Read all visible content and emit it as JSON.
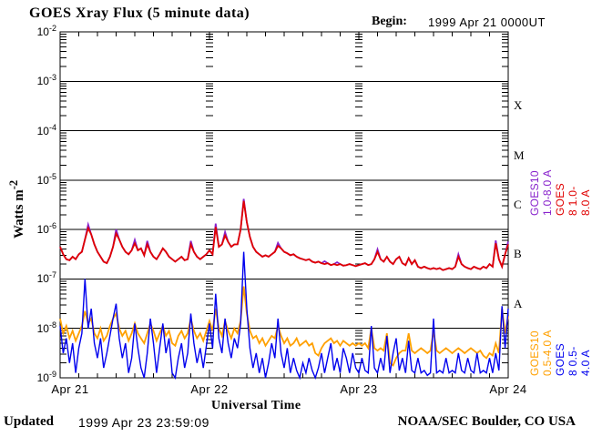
{
  "title": "GOES Xray Flux (5 minute data)",
  "header": {
    "begin_label": "Begin:",
    "begin_value": "1999 Apr 21 0000UT"
  },
  "footer": {
    "updated_label": "Updated",
    "updated_value": "1999 Apr 23 23:59:09",
    "credit": "NOAA/SEC Boulder, CO USA"
  },
  "axes": {
    "xlabel": "Universal Time",
    "ylabel_base": "Watts m",
    "ylabel_exp": "-2",
    "x_ticks": [
      "Apr 21",
      "Apr 22",
      "Apr 23",
      "Apr 24"
    ],
    "y_exponents": [
      -2,
      -3,
      -4,
      -5,
      -6,
      -7,
      -8,
      -9
    ],
    "class_letters": [
      "X",
      "M",
      "C",
      "B",
      "A"
    ]
  },
  "legend": [
    {
      "label": "GOES10 1.0-8.0 A",
      "color": "#8822cc"
    },
    {
      "label": "GOES 8 1.0-8.0 A",
      "color": "#e00000"
    },
    {
      "label": "GOES10 0.5-4.0 A",
      "color": "#ffa000"
    },
    {
      "label": "GOES 8 0.5-4.0 A",
      "color": "#0000ee"
    }
  ],
  "chart_data": {
    "type": "line",
    "title": "GOES Xray Flux (5 minute data)",
    "xlabel": "Universal Time",
    "ylabel": "Watts m^-2",
    "x_unit": "hours since 1999 Apr 21 0000UT",
    "x_start_hours": 0,
    "x_step_hours": 0.5,
    "xlim_hours": [
      0,
      72
    ],
    "x_day_labels": [
      "Apr 21",
      "Apr 22",
      "Apr 23",
      "Apr 24"
    ],
    "y_scale": "log10",
    "ylim_log10": [
      -9,
      -2
    ],
    "grid": "horizontal decade lines 1e-3 to 1e-8",
    "legend_position": "right, rotated 90deg",
    "flare_classes": [
      "X",
      "M",
      "C",
      "B",
      "A"
    ],
    "values_are": "log10 of X-ray flux in Watts m^-2",
    "series": [
      {
        "name": "GOES10 1.0-8.0 A",
        "color": "#8822cc",
        "log10_values": [
          -6.35,
          -6.5,
          -6.6,
          -6.62,
          -6.55,
          -6.6,
          -6.5,
          -6.45,
          -6.2,
          -5.9,
          -6.1,
          -6.3,
          -6.45,
          -6.55,
          -6.65,
          -6.68,
          -6.55,
          -6.35,
          -6.0,
          -6.2,
          -6.35,
          -6.45,
          -6.5,
          -6.42,
          -6.21,
          -6.42,
          -6.38,
          -6.52,
          -6.23,
          -6.45,
          -6.55,
          -6.6,
          -6.5,
          -6.38,
          -6.45,
          -6.55,
          -6.6,
          -6.65,
          -6.6,
          -6.55,
          -6.62,
          -6.6,
          -6.23,
          -6.45,
          -6.55,
          -6.6,
          -6.55,
          -6.5,
          -6.42,
          -6.5,
          -5.88,
          -6.35,
          -6.3,
          -6.05,
          -6.25,
          -6.35,
          -6.3,
          -6.3,
          -6.0,
          -5.38,
          -5.85,
          -6.15,
          -6.35,
          -6.45,
          -6.5,
          -6.55,
          -6.52,
          -6.55,
          -6.5,
          -6.45,
          -6.27,
          -6.38,
          -6.45,
          -6.48,
          -6.52,
          -6.5,
          -6.55,
          -6.58,
          -6.6,
          -6.62,
          -6.6,
          -6.65,
          -6.67,
          -6.65,
          -6.68,
          -6.64,
          -6.68,
          -6.72,
          -6.7,
          -6.66,
          -6.7,
          -6.73,
          -6.72,
          -6.7,
          -6.72,
          -6.74,
          -6.72,
          -6.7,
          -6.68,
          -6.72,
          -6.7,
          -6.6,
          -6.4,
          -6.6,
          -6.65,
          -6.55,
          -6.65,
          -6.7,
          -6.6,
          -6.55,
          -6.68,
          -6.72,
          -6.58,
          -6.7,
          -6.62,
          -6.75,
          -6.78,
          -6.75,
          -6.78,
          -6.8,
          -6.78,
          -6.8,
          -6.78,
          -6.82,
          -6.8,
          -6.78,
          -6.8,
          -6.75,
          -6.5,
          -6.7,
          -6.75,
          -6.78,
          -6.8,
          -6.75,
          -6.78,
          -6.8,
          -6.75,
          -6.78,
          -6.7,
          -6.75,
          -6.22,
          -6.6,
          -6.75,
          -6.5,
          -6.24
        ]
      },
      {
        "name": "GOES10 0.5-4.0 A",
        "color": "#ffa000",
        "log10_values": [
          -7.8,
          -8.1,
          -7.95,
          -8.2,
          -8.05,
          -8.25,
          -8.1,
          -7.95,
          -7.65,
          -7.9,
          -7.8,
          -8.1,
          -8.2,
          -8.0,
          -8.25,
          -8.15,
          -7.95,
          -7.8,
          -7.7,
          -8.0,
          -8.15,
          -8.05,
          -8.25,
          -8.1,
          -7.9,
          -8.1,
          -8.2,
          -8.3,
          -8.1,
          -7.9,
          -8.05,
          -8.25,
          -8.1,
          -7.95,
          -8.15,
          -8.05,
          -8.3,
          -8.35,
          -8.15,
          -8.05,
          -8.2,
          -8.1,
          -7.8,
          -8.05,
          -8.2,
          -8.1,
          -8.25,
          -8.05,
          -7.85,
          -8.05,
          -7.6,
          -8.0,
          -8.15,
          -7.85,
          -8.05,
          -8.2,
          -8.0,
          -8.1,
          -7.85,
          -7.15,
          -7.7,
          -8.05,
          -8.2,
          -8.15,
          -8.3,
          -8.2,
          -8.35,
          -8.25,
          -8.15,
          -8.2,
          -7.95,
          -8.15,
          -8.3,
          -8.2,
          -8.35,
          -8.3,
          -8.2,
          -8.35,
          -8.3,
          -8.25,
          -8.35,
          -8.3,
          -8.5,
          -8.55,
          -8.4,
          -8.3,
          -8.25,
          -8.2,
          -8.3,
          -8.25,
          -8.35,
          -8.25,
          -8.3,
          -8.35,
          -8.3,
          -8.35,
          -8.3,
          -8.35,
          -8.3,
          -8.4,
          -8.0,
          -8.4,
          -8.45,
          -8.4,
          -8.45,
          -8.1,
          -8.7,
          -8.75,
          -8.6,
          -8.5,
          -8.45,
          -8.45,
          -8.1,
          -8.45,
          -8.5,
          -8.45,
          -8.4,
          -8.45,
          -8.5,
          -8.45,
          -8.05,
          -8.45,
          -8.5,
          -8.45,
          -8.4,
          -8.45,
          -8.5,
          -8.45,
          -8.4,
          -8.45,
          -8.5,
          -8.45,
          -8.4,
          -8.45,
          -8.5,
          -8.45,
          -8.55,
          -8.6,
          -8.5,
          -8.55,
          -8.3,
          -8.5,
          -7.6,
          -8.1,
          -7.75
        ]
      },
      {
        "name": "GOES 8 1.0-8.0 A",
        "color": "#e00000",
        "log10_values": [
          -6.35,
          -6.5,
          -6.6,
          -6.62,
          -6.55,
          -6.6,
          -6.5,
          -6.45,
          -6.2,
          -5.97,
          -6.1,
          -6.3,
          -6.45,
          -6.55,
          -6.65,
          -6.68,
          -6.55,
          -6.35,
          -6.08,
          -6.2,
          -6.35,
          -6.45,
          -6.5,
          -6.42,
          -6.28,
          -6.42,
          -6.38,
          -6.52,
          -6.3,
          -6.45,
          -6.55,
          -6.6,
          -6.5,
          -6.38,
          -6.45,
          -6.55,
          -6.6,
          -6.65,
          -6.6,
          -6.55,
          -6.62,
          -6.6,
          -6.3,
          -6.45,
          -6.55,
          -6.6,
          -6.55,
          -6.5,
          -6.42,
          -6.5,
          -5.95,
          -6.35,
          -6.3,
          -6.12,
          -6.25,
          -6.35,
          -6.3,
          -6.3,
          -6.0,
          -5.42,
          -5.85,
          -6.15,
          -6.35,
          -6.45,
          -6.5,
          -6.55,
          -6.52,
          -6.55,
          -6.5,
          -6.45,
          -6.33,
          -6.38,
          -6.45,
          -6.48,
          -6.52,
          -6.5,
          -6.55,
          -6.58,
          -6.6,
          -6.62,
          -6.6,
          -6.65,
          -6.67,
          -6.65,
          -6.68,
          -6.7,
          -6.68,
          -6.72,
          -6.7,
          -6.72,
          -6.7,
          -6.73,
          -6.72,
          -6.7,
          -6.72,
          -6.74,
          -6.72,
          -6.7,
          -6.68,
          -6.72,
          -6.7,
          -6.6,
          -6.45,
          -6.6,
          -6.65,
          -6.55,
          -6.65,
          -6.7,
          -6.6,
          -6.55,
          -6.68,
          -6.72,
          -6.58,
          -6.7,
          -6.62,
          -6.75,
          -6.78,
          -6.75,
          -6.78,
          -6.8,
          -6.78,
          -6.8,
          -6.78,
          -6.82,
          -6.8,
          -6.78,
          -6.8,
          -6.75,
          -6.55,
          -6.7,
          -6.75,
          -6.78,
          -6.8,
          -6.75,
          -6.78,
          -6.8,
          -6.75,
          -6.78,
          -6.7,
          -6.75,
          -6.28,
          -6.6,
          -6.75,
          -6.5,
          -6.3
        ]
      },
      {
        "name": "GOES 8 0.5-4.0 A",
        "color": "#0000ee",
        "log10_values": [
          -7.95,
          -8.5,
          -8.2,
          -8.7,
          -8.3,
          -8.9,
          -8.4,
          -8.1,
          -7.0,
          -8.0,
          -7.6,
          -8.3,
          -8.6,
          -8.2,
          -8.8,
          -8.5,
          -8.15,
          -7.8,
          -7.5,
          -8.2,
          -8.6,
          -8.3,
          -8.9,
          -8.6,
          -7.9,
          -8.4,
          -8.8,
          -9.0,
          -8.5,
          -7.8,
          -8.3,
          -8.9,
          -8.4,
          -7.9,
          -8.5,
          -8.2,
          -8.9,
          -9.05,
          -8.6,
          -8.3,
          -8.8,
          -8.5,
          -7.7,
          -8.3,
          -8.7,
          -8.4,
          -8.8,
          -8.35,
          -7.9,
          -8.4,
          -7.3,
          -8.2,
          -8.5,
          -7.8,
          -8.3,
          -8.6,
          -8.2,
          -8.4,
          -7.9,
          -6.45,
          -7.6,
          -8.4,
          -8.8,
          -8.5,
          -8.9,
          -8.6,
          -9.0,
          -8.7,
          -8.3,
          -8.6,
          -7.8,
          -8.5,
          -8.8,
          -8.4,
          -8.9,
          -8.6,
          -8.85,
          -9.0,
          -8.7,
          -8.9,
          -8.6,
          -8.85,
          -9.0,
          -8.8,
          -8.5,
          -8.9,
          -8.6,
          -8.3,
          -8.85,
          -8.6,
          -8.9,
          -8.4,
          -8.6,
          -8.9,
          -8.5,
          -8.8,
          -8.9,
          -8.6,
          -8.85,
          -8.9,
          -7.95,
          -8.8,
          -8.9,
          -8.6,
          -8.85,
          -8.15,
          -8.9,
          -8.5,
          -8.2,
          -8.85,
          -8.6,
          -8.9,
          -8.25,
          -8.85,
          -8.9,
          -8.6,
          -8.9,
          -8.85,
          -8.95,
          -8.9,
          -7.8,
          -8.9,
          -8.85,
          -8.9,
          -8.6,
          -8.9,
          -8.85,
          -8.9,
          -8.5,
          -8.85,
          -8.9,
          -8.6,
          -8.85,
          -8.9,
          -8.5,
          -8.9,
          -8.85,
          -8.9,
          -8.6,
          -8.9,
          -8.5,
          -8.85,
          -7.55,
          -8.4,
          -7.6
        ]
      }
    ]
  }
}
